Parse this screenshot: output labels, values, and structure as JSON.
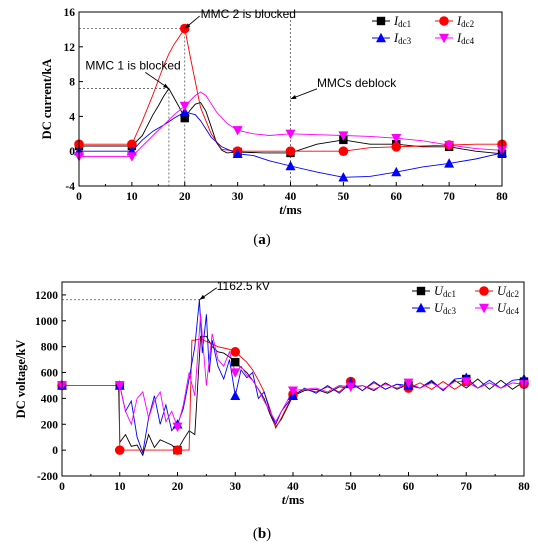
{
  "chart_data": [
    {
      "id": "a",
      "type": "line",
      "caption_open": "(",
      "caption": "a",
      "caption_close": ")",
      "ylabel": "DC current/kA",
      "xlabel_italic": "t",
      "xlabel_unit": "/ms",
      "xlim": [
        0,
        80
      ],
      "ylim": [
        -4,
        16
      ],
      "xticks": [
        "0",
        "10",
        "20",
        "30",
        "40",
        "50",
        "60",
        "70",
        "80"
      ],
      "yticks": [
        "-4",
        "0",
        "4",
        "8",
        "12",
        "16"
      ],
      "grid": false,
      "legend_position": "top-right",
      "annotations": [
        {
          "text": "MMC 2 is blocked",
          "x": 20,
          "y": 14.1,
          "tx": 23,
          "ty": 15.3
        },
        {
          "text": "MMC 1 is blocked",
          "x": 17,
          "y": 7.2,
          "tx": 1.2,
          "ty": 9.4
        },
        {
          "text": "MMCs deblock",
          "x": 40,
          "y": 6.0,
          "tx": 45,
          "ty": 7.4
        }
      ],
      "series": [
        {
          "name": "Idc1",
          "letter": "I",
          "sub": "dc1",
          "color": "#000000",
          "marker": "square",
          "x": [
            0,
            10,
            12,
            14,
            15,
            16,
            17,
            18,
            19,
            20,
            21,
            22,
            23,
            24,
            25,
            26,
            27,
            28,
            30,
            35,
            40,
            45,
            50,
            55,
            60,
            65,
            70,
            75,
            80
          ],
          "y": [
            0.6,
            0.6,
            1.8,
            4.2,
            5.2,
            6.3,
            7.2,
            6.1,
            5.0,
            3.8,
            4.7,
            5.4,
            5.6,
            4.6,
            2.8,
            1.0,
            0.1,
            -0.2,
            -0.1,
            -0.2,
            -0.2,
            0.8,
            1.3,
            0.8,
            0.8,
            0.5,
            0.5,
            0.0,
            -0.3
          ],
          "mx": [
            0,
            10,
            20,
            30,
            40,
            50,
            60,
            70,
            80
          ],
          "my": [
            0.6,
            0.6,
            3.8,
            -0.1,
            -0.2,
            1.3,
            0.8,
            0.5,
            -0.3
          ]
        },
        {
          "name": "Idc2",
          "letter": "I",
          "sub": "dc2",
          "color": "#ff0000",
          "marker": "circle",
          "x": [
            0,
            10,
            12,
            14,
            16,
            17,
            18,
            19,
            20,
            21,
            22,
            23,
            25,
            27,
            30,
            35,
            40,
            45,
            50,
            55,
            60,
            65,
            70,
            75,
            80
          ],
          "y": [
            0.8,
            0.8,
            3.5,
            6.5,
            9.8,
            11.2,
            12.3,
            13.2,
            14.1,
            11.0,
            8.0,
            5.0,
            2.0,
            0.2,
            0.0,
            0.0,
            0.0,
            0.0,
            0.0,
            0.4,
            0.5,
            0.6,
            0.7,
            0.8,
            0.8
          ],
          "mx": [
            0,
            10,
            20,
            30,
            40,
            50,
            60,
            70,
            80
          ],
          "my": [
            0.8,
            0.8,
            14.1,
            0.0,
            0.0,
            0.0,
            0.5,
            0.7,
            0.8
          ]
        },
        {
          "name": "Idc3",
          "letter": "I",
          "sub": "dc3",
          "color": "#0000ff",
          "marker": "triangle-up",
          "x": [
            0,
            10,
            12,
            14,
            16,
            18,
            20,
            22,
            23,
            25,
            27,
            30,
            33,
            36,
            40,
            45,
            50,
            55,
            60,
            65,
            70,
            75,
            80
          ],
          "y": [
            0.0,
            0.0,
            1.3,
            2.3,
            3.0,
            3.8,
            4.5,
            4.2,
            3.5,
            1.6,
            0.5,
            -0.3,
            -0.5,
            -1.1,
            -1.7,
            -2.4,
            -3.0,
            -2.9,
            -2.4,
            -1.8,
            -1.4,
            -0.9,
            -0.2
          ],
          "mx": [
            0,
            10,
            20,
            30,
            40,
            50,
            60,
            70,
            80
          ],
          "my": [
            0.0,
            0.0,
            4.5,
            -0.3,
            -1.7,
            -3.0,
            -2.4,
            -1.4,
            -0.2
          ]
        },
        {
          "name": "Idc4",
          "letter": "I",
          "sub": "dc4",
          "color": "#ff00ff",
          "marker": "triangle-down",
          "x": [
            0,
            10,
            12,
            14,
            16,
            18,
            20,
            22,
            23,
            24,
            26,
            28,
            30,
            33,
            36,
            40,
            45,
            50,
            55,
            60,
            65,
            70,
            75,
            80
          ],
          "y": [
            -0.6,
            -0.6,
            0.6,
            1.8,
            3.0,
            4.2,
            5.2,
            6.4,
            6.8,
            6.4,
            4.5,
            3.2,
            2.4,
            2.0,
            1.8,
            2.0,
            1.9,
            1.8,
            1.7,
            1.5,
            1.2,
            0.7,
            0.3,
            0.1
          ],
          "mx": [
            0,
            10,
            20,
            30,
            40,
            50,
            60,
            70,
            80
          ],
          "my": [
            -0.6,
            -0.6,
            5.2,
            2.4,
            2.0,
            1.8,
            1.5,
            0.7,
            0.1
          ]
        }
      ]
    },
    {
      "id": "b",
      "type": "line",
      "caption_open": "(",
      "caption": "b",
      "caption_close": ")",
      "ylabel": "DC voltage/kV",
      "xlabel_italic": "t",
      "xlabel_unit": "/ms",
      "xlim": [
        0,
        80
      ],
      "ylim": [
        -200,
        1300
      ],
      "xticks": [
        "0",
        "10",
        "20",
        "30",
        "40",
        "50",
        "60",
        "70",
        "80"
      ],
      "yticks": [
        "-200",
        "0",
        "200",
        "400",
        "600",
        "800",
        "1000",
        "1200"
      ],
      "grid": false,
      "legend_position": "top-right",
      "annotations": [
        {
          "text": "1162.5 kV",
          "x": 23.8,
          "y": 1162.5,
          "tx": 26.8,
          "ty": 1240
        }
      ],
      "series": [
        {
          "name": "Udc1",
          "letter": "U",
          "sub": "dc1",
          "color": "#000000",
          "marker": "square",
          "x": [
            0,
            9.8,
            10,
            11,
            12,
            13,
            14,
            15,
            16,
            17,
            18,
            19,
            20,
            21,
            22,
            23,
            24,
            25,
            26,
            27,
            28,
            29,
            30,
            31,
            32,
            33,
            34,
            35,
            36,
            37,
            38,
            40,
            42,
            44,
            46,
            48,
            50,
            52,
            54,
            56,
            58,
            60,
            62,
            64,
            66,
            68,
            70,
            72,
            74,
            76,
            78,
            80
          ],
          "y": [
            500,
            500,
            60,
            120,
            30,
            40,
            -40,
            120,
            20,
            80,
            60,
            40,
            0,
            80,
            150,
            120,
            880,
            880,
            800,
            760,
            750,
            720,
            680,
            640,
            600,
            540,
            470,
            400,
            280,
            180,
            240,
            420,
            460,
            470,
            440,
            490,
            480,
            500,
            460,
            520,
            470,
            510,
            480,
            530,
            460,
            540,
            480,
            550,
            470,
            540,
            470,
            530
          ],
          "mx": [
            0,
            10,
            20,
            30,
            40,
            50,
            60,
            70,
            80
          ],
          "my": [
            500,
            500,
            0,
            680,
            420,
            520,
            500,
            550,
            530
          ]
        },
        {
          "name": "Udc2",
          "letter": "U",
          "sub": "dc2",
          "color": "#ff0000",
          "marker": "circle",
          "x": [
            0,
            9.9,
            10,
            19.9,
            20,
            21,
            22,
            22.5,
            23,
            24,
            25,
            26,
            27,
            28,
            29,
            30,
            31,
            32,
            33,
            34,
            35,
            36,
            37,
            38,
            40,
            42,
            44,
            46,
            48,
            50,
            52,
            54,
            56,
            58,
            60,
            62,
            64,
            66,
            68,
            70,
            72,
            74,
            76,
            78,
            80
          ],
          "y": [
            500,
            500,
            0,
            0,
            0,
            0,
            0,
            850,
            850,
            860,
            840,
            820,
            800,
            790,
            780,
            760,
            720,
            680,
            620,
            540,
            450,
            320,
            170,
            250,
            430,
            470,
            450,
            490,
            450,
            530,
            460,
            520,
            470,
            510,
            480,
            520,
            470,
            530,
            470,
            530,
            480,
            520,
            480,
            520,
            510
          ],
          "mx": [
            0,
            10,
            20,
            30,
            40,
            50,
            60,
            70,
            80
          ],
          "my": [
            500,
            0,
            0,
            760,
            430,
            530,
            480,
            530,
            510
          ]
        },
        {
          "name": "Udc3",
          "letter": "U",
          "sub": "dc3",
          "color": "#0000ff",
          "marker": "triangle-up",
          "x": [
            0,
            9.7,
            10,
            11,
            12,
            13,
            14,
            15,
            16,
            17,
            18,
            19,
            20,
            21,
            22,
            23,
            23.8,
            24.3,
            25,
            25.5,
            26,
            27,
            28,
            29,
            30,
            31,
            32,
            33,
            34,
            35,
            36,
            37,
            38,
            40,
            42,
            44,
            46,
            48,
            50,
            52,
            54,
            56,
            58,
            60,
            62,
            64,
            66,
            68,
            70,
            72,
            74,
            76,
            78,
            80
          ],
          "y": [
            500,
            500,
            500,
            300,
            380,
            100,
            -20,
            250,
            420,
            200,
            350,
            150,
            200,
            320,
            550,
            800,
            1162.5,
            750,
            1050,
            600,
            850,
            650,
            550,
            700,
            420,
            620,
            560,
            600,
            400,
            450,
            300,
            200,
            300,
            420,
            480,
            440,
            500,
            440,
            520,
            460,
            530,
            470,
            510,
            500,
            480,
            540,
            460,
            550,
            560,
            480,
            540,
            480,
            540,
            550
          ],
          "mx": [
            0,
            10,
            20,
            30,
            40,
            50,
            60,
            70,
            80
          ],
          "my": [
            500,
            500,
            200,
            420,
            420,
            520,
            500,
            560,
            550
          ]
        },
        {
          "name": "Udc4",
          "letter": "U",
          "sub": "dc4",
          "color": "#ff00ff",
          "marker": "triangle-down",
          "x": [
            0,
            9.8,
            10,
            11,
            12,
            13,
            14,
            15,
            16,
            17,
            18,
            19,
            20,
            21,
            22,
            23,
            24,
            25,
            26,
            27,
            28,
            29,
            30,
            31,
            32,
            33,
            34,
            35,
            36,
            37,
            38,
            40,
            42,
            44,
            46,
            48,
            50,
            52,
            54,
            56,
            58,
            60,
            62,
            64,
            66,
            68,
            70,
            72,
            74,
            76,
            78,
            80
          ],
          "y": [
            500,
            500,
            500,
            300,
            200,
            400,
            450,
            250,
            380,
            450,
            220,
            300,
            180,
            350,
            600,
            420,
            1050,
            500,
            900,
            700,
            650,
            760,
            600,
            650,
            580,
            540,
            470,
            380,
            300,
            220,
            300,
            460,
            470,
            480,
            450,
            500,
            490,
            500,
            470,
            510,
            480,
            520,
            480,
            520,
            470,
            530,
            530,
            480,
            520,
            480,
            520,
            510
          ],
          "mx": [
            0,
            10,
            20,
            30,
            40,
            50,
            60,
            70,
            80
          ],
          "my": [
            500,
            500,
            180,
            600,
            460,
            490,
            520,
            530,
            510
          ]
        }
      ]
    }
  ]
}
